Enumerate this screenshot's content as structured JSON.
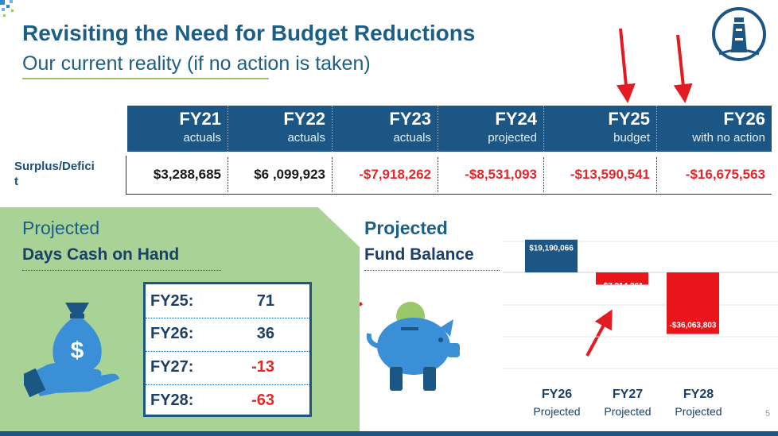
{
  "header": {
    "title": "Revisiting the Need for Budget Reductions",
    "subtitle": "Our current reality (if no action is taken)"
  },
  "table": {
    "columns": [
      {
        "fy": "FY21",
        "sub": "actuals"
      },
      {
        "fy": "FY22",
        "sub": "actuals"
      },
      {
        "fy": "FY23",
        "sub": "actuals"
      },
      {
        "fy": "FY24",
        "sub": "projected"
      },
      {
        "fy": "FY25",
        "sub": "budget"
      },
      {
        "fy": "FY26",
        "sub": "with no action"
      }
    ],
    "row_label": "Surplus/Defici\nt",
    "values": [
      "$3,288,685",
      "$6 ,099,923",
      "-$7,918,262",
      "-$8,531,093",
      "-$13,590,541",
      "-$16,675,563"
    ]
  },
  "days_cash": {
    "label_top": "Projected",
    "label_bottom": "Days Cash on Hand",
    "rows": [
      {
        "year": "FY25:",
        "value": "71"
      },
      {
        "year": "FY26:",
        "value": "36"
      },
      {
        "year": "FY27:",
        "value": "-13"
      },
      {
        "year": "FY28:",
        "value": "-63"
      }
    ]
  },
  "fund_balance": {
    "label_top": "Projected",
    "label_bottom": "Fund Balance"
  },
  "chart_data": {
    "type": "bar",
    "title": "Projected Fund Balance",
    "categories": [
      "FY26",
      "FY27",
      "FY28"
    ],
    "category_sub": [
      "Projected",
      "Projected",
      "Projected"
    ],
    "values": [
      19190066,
      -7214261,
      -36063803
    ],
    "labels": [
      "$19,190,066",
      "-$7,214,261",
      "-$36,063,803"
    ],
    "colors": [
      "#1b5684",
      "#e8151b",
      "#e8151b"
    ],
    "ylim": [
      -40000000,
      24000000
    ]
  },
  "page_number": "5",
  "colors": {
    "primary": "#1b5684",
    "negative": "#e8262a",
    "green_panel": "#a9d396"
  }
}
